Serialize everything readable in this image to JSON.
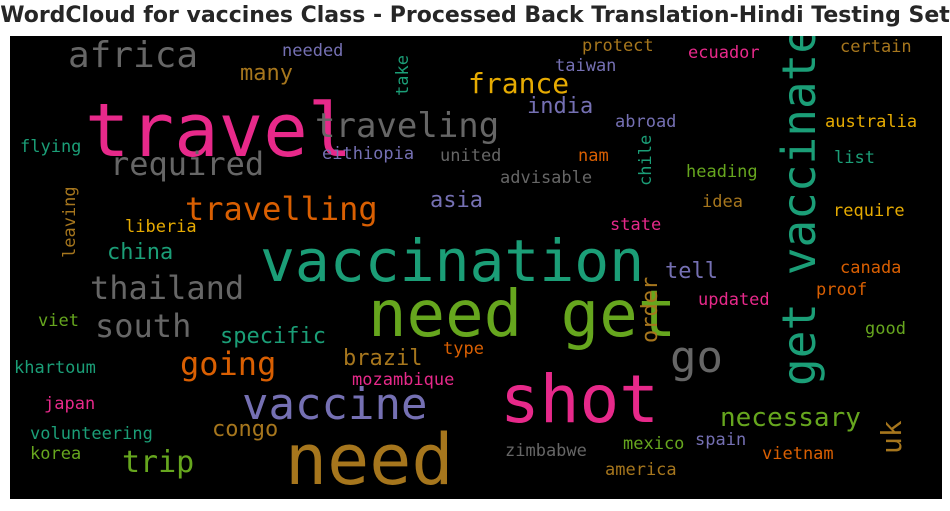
{
  "chart_data": {
    "type": "wordcloud",
    "title": "WordCloud for vaccines Class - Processed Back Translation-Hindi Testing Set",
    "words": [
      {
        "text": "travel",
        "color": "#e7298a"
      },
      {
        "text": "vaccination",
        "color": "#1b9e77"
      },
      {
        "text": "need get",
        "color": "#66a61e"
      },
      {
        "text": "shot",
        "color": "#e7298a"
      },
      {
        "text": "need",
        "color": "#a6761d"
      },
      {
        "text": "get vaccinated",
        "color": "#1b9e77"
      },
      {
        "text": "vaccine",
        "color": "#7570b3"
      },
      {
        "text": "go",
        "color": "#666666"
      },
      {
        "text": "africa",
        "color": "#666666"
      },
      {
        "text": "traveling",
        "color": "#666666"
      },
      {
        "text": "required",
        "color": "#666666"
      },
      {
        "text": "travelling",
        "color": "#d95f02"
      },
      {
        "text": "thailand",
        "color": "#666666"
      },
      {
        "text": "south",
        "color": "#666666"
      },
      {
        "text": "going",
        "color": "#d95f02"
      },
      {
        "text": "trip",
        "color": "#66a61e"
      },
      {
        "text": "necessary",
        "color": "#66a61e"
      },
      {
        "text": "france",
        "color": "#e6ab02"
      },
      {
        "text": "uk",
        "color": "#a6761d"
      },
      {
        "text": "many",
        "color": "#a6761d"
      },
      {
        "text": "india",
        "color": "#7570b3"
      },
      {
        "text": "asia",
        "color": "#7570b3"
      },
      {
        "text": "china",
        "color": "#1b9e77"
      },
      {
        "text": "tell",
        "color": "#7570b3"
      },
      {
        "text": "specific",
        "color": "#1b9e77"
      },
      {
        "text": "brazil",
        "color": "#a6761d"
      },
      {
        "text": "congo",
        "color": "#a6761d"
      },
      {
        "text": "order",
        "color": "#a6761d"
      },
      {
        "text": "needed",
        "color": "#7570b3"
      },
      {
        "text": "take",
        "color": "#1b9e77"
      },
      {
        "text": "protect",
        "color": "#a6761d"
      },
      {
        "text": "taiwan",
        "color": "#7570b3"
      },
      {
        "text": "ecuador",
        "color": "#e7298a"
      },
      {
        "text": "certain",
        "color": "#a6761d"
      },
      {
        "text": "australia",
        "color": "#e6ab02"
      },
      {
        "text": "flying",
        "color": "#1b9e77"
      },
      {
        "text": "eithiopia",
        "color": "#7570b3"
      },
      {
        "text": "united",
        "color": "#666666"
      },
      {
        "text": "abroad",
        "color": "#7570b3"
      },
      {
        "text": "nam",
        "color": "#d95f02"
      },
      {
        "text": "chile",
        "color": "#1b9e77"
      },
      {
        "text": "heading",
        "color": "#66a61e"
      },
      {
        "text": "list",
        "color": "#1b9e77"
      },
      {
        "text": "advisable",
        "color": "#666666"
      },
      {
        "text": "leaving",
        "color": "#a6761d"
      },
      {
        "text": "liberia",
        "color": "#e6ab02"
      },
      {
        "text": "idea",
        "color": "#a6761d"
      },
      {
        "text": "state",
        "color": "#e7298a"
      },
      {
        "text": "require",
        "color": "#e6ab02"
      },
      {
        "text": "canada",
        "color": "#d95f02"
      },
      {
        "text": "proof",
        "color": "#d95f02"
      },
      {
        "text": "updated",
        "color": "#e7298a"
      },
      {
        "text": "viet",
        "color": "#66a61e"
      },
      {
        "text": "good",
        "color": "#66a61e"
      },
      {
        "text": "type",
        "color": "#d95f02"
      },
      {
        "text": "khartoum",
        "color": "#1b9e77"
      },
      {
        "text": "mozambique",
        "color": "#e7298a"
      },
      {
        "text": "japan",
        "color": "#e7298a"
      },
      {
        "text": "volunteering",
        "color": "#1b9e77"
      },
      {
        "text": "korea",
        "color": "#66a61e"
      },
      {
        "text": "zimbabwe",
        "color": "#666666"
      },
      {
        "text": "mexico",
        "color": "#66a61e"
      },
      {
        "text": "spain",
        "color": "#7570b3"
      },
      {
        "text": "vietnam",
        "color": "#d95f02"
      },
      {
        "text": "america",
        "color": "#a6761d"
      }
    ]
  }
}
